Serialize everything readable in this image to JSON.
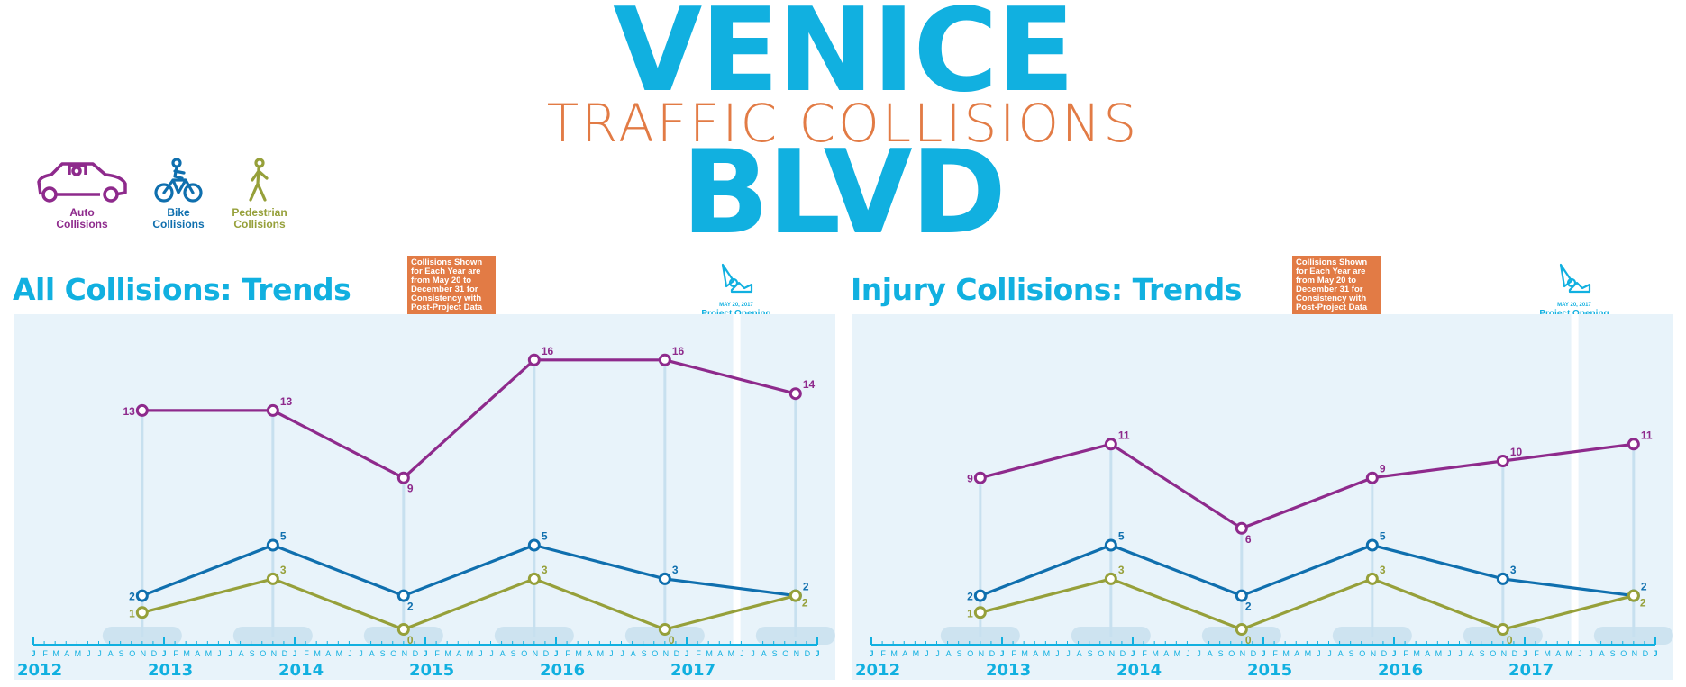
{
  "title": {
    "line1": "VENICE",
    "line2": "TRAFFIC COLLISIONS",
    "line3": "BLVD"
  },
  "colors": {
    "auto": "#8e2a8c",
    "bike": "#0f6fae",
    "pedestrian": "#96a03a",
    "accent": "#11b0e0",
    "note": "#e27b45",
    "panel": "#e8f3fa"
  },
  "legend": [
    {
      "key": "auto",
      "label1": "Auto",
      "label2": "Collisions",
      "icon": "car-icon"
    },
    {
      "key": "bike",
      "label1": "Bike",
      "label2": "Collisions",
      "icon": "bicycle-icon"
    },
    {
      "key": "pedestrian",
      "label1": "Pedestrian",
      "label2": "Collisions",
      "icon": "pedestrian-icon"
    }
  ],
  "month_ticks": [
    "J",
    "F",
    "M",
    "A",
    "M",
    "J",
    "J",
    "A",
    "S",
    "O",
    "N",
    "D"
  ],
  "chart_data": [
    {
      "type": "line",
      "title": "All Collisions: Trends",
      "note": "Collisions Shown for Each Year are from May 20 to December 31 for Consistency with Post-Project Data",
      "marker": {
        "date": "MAY 20, 2017",
        "label": "Project Opening"
      },
      "categories": [
        "2012",
        "2013",
        "2014",
        "2015",
        "2016",
        "2017"
      ],
      "series": [
        {
          "key": "auto",
          "values": [
            13,
            13,
            9,
            16,
            16,
            14
          ]
        },
        {
          "key": "bike",
          "values": [
            2,
            5,
            2,
            5,
            3,
            2
          ]
        },
        {
          "key": "pedestrian",
          "values": [
            1,
            3,
            0,
            3,
            0,
            2
          ]
        }
      ]
    },
    {
      "type": "line",
      "title": "Injury Collisions: Trends",
      "note": "Collisions Shown for Each Year are from May 20 to December 31 for Consistency with Post-Project Data",
      "marker": {
        "date": "MAY 20, 2017",
        "label": "Project Opening"
      },
      "categories": [
        "2012",
        "2013",
        "2014",
        "2015",
        "2016",
        "2017"
      ],
      "series": [
        {
          "key": "auto",
          "values": [
            9,
            11,
            6,
            9,
            10,
            11
          ]
        },
        {
          "key": "bike",
          "values": [
            2,
            5,
            2,
            5,
            3,
            2
          ]
        },
        {
          "key": "pedestrian",
          "values": [
            1,
            3,
            0,
            3,
            0,
            2
          ]
        }
      ]
    }
  ]
}
